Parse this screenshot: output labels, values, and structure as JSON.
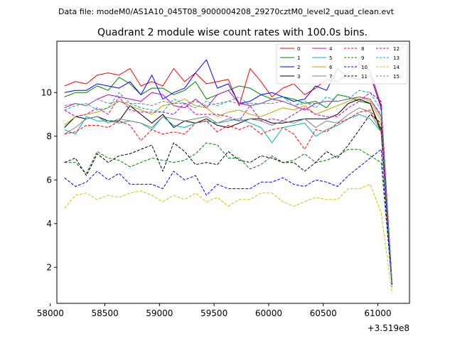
{
  "header": "Data file: modeM0/AS1A10_045T08_9000004208_29270cztM0_level2_quad_clean.evt",
  "chart_data": {
    "type": "line",
    "title": "Quadrant 2 module wise count rates with 100.0s bins.",
    "xlabel": "",
    "ylabel": "",
    "x_offset_label": "+3.519e8",
    "xlim": [
      58060,
      61290
    ],
    "ylim": [
      0.35,
      12.35
    ],
    "xticks": [
      58000,
      58500,
      59000,
      59500,
      60000,
      60500,
      61000
    ],
    "yticks": [
      2,
      4,
      6,
      8,
      10
    ],
    "legend_loc": "top-right",
    "x": [
      58130,
      58230,
      58330,
      58430,
      58530,
      58630,
      58730,
      58830,
      58930,
      59030,
      59130,
      59230,
      59330,
      59430,
      59530,
      59630,
      59730,
      59830,
      59930,
      60030,
      60130,
      60230,
      60330,
      60430,
      60530,
      60630,
      60730,
      60830,
      60930,
      61030,
      61130
    ],
    "series": [
      {
        "name": "0",
        "color": "#ff0000",
        "dash": "solid",
        "values": [
          10.3,
          10.5,
          10.4,
          10.8,
          10.9,
          10.8,
          11.1,
          10.3,
          10.5,
          10.3,
          11.1,
          10.5,
          10.9,
          10.4,
          10.5,
          10.6,
          9.4,
          11.1,
          10.5,
          9.8,
          10.2,
          10.4,
          9.9,
          10.2,
          10.6,
          10.5,
          10.9,
          11.3,
          11.0,
          9.4,
          1.3
        ]
      },
      {
        "name": "1",
        "color": "#008000",
        "dash": "solid",
        "values": [
          9.8,
          10.0,
          10.0,
          10.3,
          10.1,
          10.7,
          10.4,
          9.9,
          10.2,
          10.2,
          9.9,
          10.1,
          10.5,
          9.7,
          9.9,
          10.1,
          10.3,
          10.2,
          9.9,
          9.7,
          9.8,
          9.7,
          9.5,
          9.6,
          9.3,
          9.9,
          9.8,
          9.6,
          9.5,
          8.3,
          1.2
        ]
      },
      {
        "name": "2",
        "color": "#0000ff",
        "dash": "solid",
        "values": [
          10.0,
          10.1,
          10.1,
          10.4,
          10.3,
          10.2,
          10.5,
          9.9,
          10.8,
          9.7,
          10.0,
          10.2,
          10.9,
          11.5,
          10.2,
          10.4,
          9.5,
          9.6,
          9.9,
          10.0,
          9.8,
          9.6,
          9.7,
          10.3,
          10.1,
          11.1,
          10.7,
          10.6,
          10.8,
          9.3,
          1.3
        ]
      },
      {
        "name": "3",
        "color": "#000000",
        "dash": "solid",
        "values": [
          8.4,
          8.9,
          8.8,
          8.9,
          8.7,
          8.7,
          9.4,
          9.0,
          8.6,
          9.0,
          8.4,
          8.7,
          8.6,
          8.8,
          8.5,
          8.4,
          8.6,
          8.8,
          8.8,
          8.6,
          8.6,
          8.7,
          8.8,
          8.8,
          8.8,
          9.0,
          9.5,
          9.7,
          9.5,
          8.2,
          1.2
        ]
      },
      {
        "name": "4",
        "color": "#c000c0",
        "dash": "solid",
        "values": [
          9.3,
          9.5,
          9.4,
          9.7,
          9.9,
          9.8,
          9.7,
          9.6,
          10.0,
          9.9,
          9.4,
          9.3,
          9.7,
          9.3,
          9.9,
          10.1,
          9.5,
          9.4,
          9.5,
          9.7,
          9.6,
          9.4,
          9.2,
          9.5,
          9.6,
          9.6,
          9.7,
          9.8,
          9.7,
          8.9,
          1.2
        ]
      },
      {
        "name": "5",
        "color": "#00b0b0",
        "dash": "solid",
        "values": [
          8.3,
          8.1,
          8.9,
          8.7,
          8.7,
          8.6,
          8.7,
          8.6,
          8.3,
          8.9,
          8.5,
          8.4,
          8.6,
          8.7,
          8.6,
          8.7,
          8.8,
          8.6,
          8.4,
          7.7,
          8.4,
          8.5,
          8.6,
          8.0,
          8.3,
          8.5,
          8.8,
          9.0,
          8.8,
          8.2,
          1.2
        ]
      },
      {
        "name": "6",
        "color": "#c8a000",
        "dash": "solid",
        "values": [
          8.5,
          8.9,
          9.0,
          9.1,
          9.3,
          9.6,
          9.4,
          9.2,
          9.0,
          9.4,
          9.5,
          9.7,
          9.4,
          9.3,
          8.9,
          9.1,
          9.2,
          9.0,
          8.9,
          9.1,
          9.3,
          9.2,
          9.4,
          9.0,
          9.2,
          9.4,
          9.6,
          9.8,
          9.6,
          8.7,
          1.2
        ]
      },
      {
        "name": "7",
        "color": "#808080",
        "dash": "solid",
        "values": [
          8.1,
          8.4,
          8.8,
          8.9,
          8.6,
          8.8,
          8.7,
          8.6,
          8.4,
          8.9,
          8.8,
          8.7,
          8.8,
          8.9,
          8.6,
          8.8,
          8.7,
          8.8,
          8.7,
          8.5,
          8.7,
          8.6,
          8.8,
          8.4,
          8.7,
          8.6,
          9.0,
          9.3,
          9.1,
          8.2,
          1.2
        ]
      },
      {
        "name": "8",
        "color": "#ff0000",
        "dash": "dashed",
        "values": [
          8.1,
          8.2,
          8.5,
          8.5,
          8.4,
          8.7,
          8.5,
          7.8,
          8.3,
          8.1,
          8.2,
          8.1,
          8.6,
          8.7,
          8.2,
          8.5,
          8.3,
          8.5,
          8.1,
          8.3,
          8.4,
          8.1,
          7.4,
          8.3,
          8.2,
          8.6,
          8.8,
          9.1,
          9.2,
          8.4,
          1.2
        ]
      },
      {
        "name": "9",
        "color": "#008000",
        "dash": "dashed",
        "values": [
          6.8,
          6.8,
          6.3,
          7.3,
          7.0,
          6.9,
          6.6,
          6.8,
          7.0,
          6.9,
          6.8,
          6.9,
          7.2,
          7.7,
          7.6,
          7.0,
          7.0,
          6.5,
          6.7,
          7.1,
          6.8,
          6.9,
          7.2,
          6.8,
          6.9,
          7.1,
          7.4,
          7.4,
          7.1,
          6.8,
          1.2
        ]
      },
      {
        "name": "10",
        "color": "#0000ff",
        "dash": "dashed",
        "values": [
          6.1,
          5.7,
          5.9,
          6.4,
          6.0,
          6.3,
          5.8,
          5.8,
          5.8,
          5.6,
          6.4,
          6.0,
          6.2,
          5.3,
          5.8,
          5.6,
          5.6,
          5.6,
          5.9,
          5.9,
          6.1,
          5.8,
          5.7,
          6.0,
          5.9,
          5.7,
          6.2,
          6.6,
          7.0,
          7.4,
          1.1
        ]
      },
      {
        "name": "11",
        "color": "#000000",
        "dash": "dashed",
        "values": [
          6.8,
          7.0,
          6.2,
          7.2,
          6.8,
          7.1,
          7.2,
          7.4,
          7.6,
          6.4,
          7.7,
          7.3,
          6.7,
          6.8,
          6.7,
          7.3,
          6.9,
          6.8,
          7.1,
          7.0,
          6.8,
          6.8,
          6.4,
          6.8,
          7.3,
          7.0,
          7.6,
          8.3,
          9.0,
          8.6,
          1.2
        ]
      },
      {
        "name": "12",
        "color": "#c000c0",
        "dash": "dashed",
        "values": [
          9.2,
          8.9,
          9.0,
          9.3,
          9.0,
          9.8,
          9.2,
          9.1,
          9.1,
          9.1,
          9.0,
          9.5,
          9.0,
          9.0,
          9.0,
          8.9,
          8.7,
          9.4,
          8.7,
          8.8,
          8.7,
          9.0,
          9.3,
          9.0,
          8.9,
          8.9,
          9.3,
          9.6,
          10.0,
          9.6,
          1.3
        ]
      },
      {
        "name": "13",
        "color": "#00b0b0",
        "dash": "dashed",
        "values": [
          9.2,
          9.4,
          9.5,
          9.2,
          9.3,
          10.0,
          9.5,
          9.3,
          9.2,
          9.1,
          9.7,
          9.5,
          9.3,
          9.6,
          9.4,
          9.6,
          9.8,
          9.4,
          9.5,
          9.7,
          9.8,
          9.4,
          9.6,
          9.3,
          9.8,
          9.6,
          9.7,
          10.1,
          10.0,
          9.2,
          1.3
        ]
      },
      {
        "name": "14",
        "color": "#c8c800",
        "dash": "dashed",
        "values": [
          4.7,
          5.3,
          5.4,
          5.1,
          5.3,
          5.2,
          5.4,
          5.5,
          5.3,
          5.0,
          5.3,
          5.1,
          5.4,
          5.0,
          5.2,
          4.8,
          5.1,
          5.1,
          5.4,
          5.4,
          5.0,
          4.8,
          5.0,
          5.2,
          5.1,
          5.1,
          5.6,
          5.6,
          5.8,
          4.5,
          0.8
        ]
      },
      {
        "name": "15",
        "color": "#808080",
        "dash": "dashed",
        "values": [
          9.4,
          9.5,
          9.4,
          9.7,
          9.5,
          9.6,
          9.5,
          9.5,
          9.4,
          9.6,
          9.5,
          9.5,
          9.6,
          9.4,
          9.5,
          9.6,
          9.5,
          9.5,
          9.5,
          9.5,
          9.6,
          9.4,
          9.5,
          9.5,
          9.6,
          9.6,
          9.7,
          9.8,
          9.7,
          9.0,
          1.3
        ]
      }
    ]
  }
}
